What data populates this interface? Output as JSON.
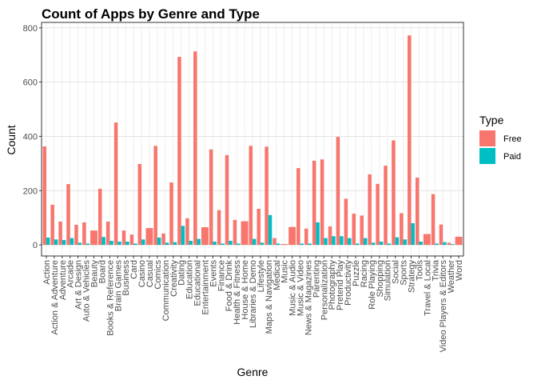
{
  "chart_data": {
    "type": "bar",
    "title": "Count of Apps by Genre and Type",
    "x_label": "Genre",
    "y_label": "Count",
    "legend_title": "Type",
    "categories": [
      "Action",
      "Action & Adventure",
      "Adventure",
      "Arcade",
      "Art & Design",
      "Auto & Vehicles",
      "Beauty",
      "Board",
      "Books & Reference",
      "Brain Games",
      "Business",
      "Card",
      "Casino",
      "Casual",
      "Comics",
      "Communication",
      "Creativity",
      "Dating",
      "Education",
      "Educational",
      "Entertainment",
      "Events",
      "Finance",
      "Food & Drink",
      "Health & Fitness",
      "House & Home",
      "Libraries & Demo",
      "Lifestyle",
      "Maps & Navigation",
      "Medical",
      "Music",
      "Music & Audio",
      "Music & Video",
      "News & Magazines",
      "Parenting",
      "Personalization",
      "Photography",
      "Pretend Play",
      "Productivity",
      "Puzzle",
      "Racing",
      "Role Playing",
      "Shopping",
      "Simulation",
      "Social",
      "Sports",
      "Strategy",
      "Tools",
      "Travel & Local",
      "Trivia",
      "Video Players & Editors",
      "Weather",
      "Word"
    ],
    "series": [
      {
        "name": "Free",
        "color": "#f8766d",
        "values": [
          363,
          148,
          86,
          224,
          74,
          83,
          53,
          207,
          86,
          451,
          53,
          38,
          298,
          62,
          365,
          42,
          230,
          693,
          98,
          713,
          65,
          352,
          128,
          331,
          92,
          87,
          365,
          133,
          362,
          25,
          3,
          66,
          283,
          60,
          310,
          315,
          68,
          398,
          170,
          115,
          108,
          260,
          225,
          292,
          385,
          117,
          772,
          248,
          40,
          187,
          75,
          8,
          30
        ]
      },
      {
        "name": "Paid",
        "color": "#00bfc4",
        "values": [
          27,
          20,
          18,
          25,
          8,
          5,
          null,
          29,
          15,
          12,
          12,
          5,
          20,
          null,
          27,
          8,
          10,
          70,
          15,
          22,
          null,
          12,
          5,
          15,
          5,
          null,
          22,
          8,
          110,
          5,
          null,
          null,
          5,
          5,
          83,
          25,
          32,
          32,
          25,
          5,
          25,
          8,
          12,
          5,
          28,
          20,
          80,
          12,
          null,
          5,
          10,
          3,
          null
        ]
      }
    ],
    "ylim": [
      -41,
      820
    ],
    "yticks": [
      0,
      200,
      400,
      600,
      800
    ],
    "grid": true,
    "legend": "right"
  }
}
